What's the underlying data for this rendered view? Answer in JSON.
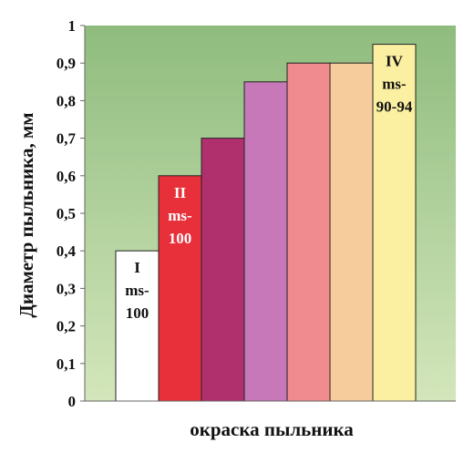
{
  "chart_data": {
    "type": "bar",
    "title": "",
    "xlabel": "окраска пыльника",
    "ylabel": "Диаметр пыльника, мм",
    "ylim": [
      0,
      1
    ],
    "yticks": [
      "0",
      "0,1",
      "0,2",
      "0,3",
      "0,4",
      "0,5",
      "0,6",
      "0,7",
      "0,8",
      "0,9",
      "1"
    ],
    "grid": false,
    "legend": "none",
    "plot_background": [
      "#d3e6bb",
      "#8fbc7e"
    ],
    "bars": [
      {
        "value": 0.4,
        "color": "#ffffff",
        "label": [
          "I",
          "ms-",
          "100"
        ],
        "label_color": "#111111"
      },
      {
        "value": 0.6,
        "color": "#e8303a",
        "label": [
          "II",
          "ms-",
          "100"
        ],
        "label_color": "#ffffff"
      },
      {
        "value": 0.7,
        "color": "#b0306e",
        "label": [],
        "label_color": "#ffffff"
      },
      {
        "value": 0.85,
        "color": "#c778b8",
        "label": [],
        "label_color": "#ffffff"
      },
      {
        "value": 0.9,
        "color": "#f08c90",
        "label": [],
        "label_color": "#ffffff"
      },
      {
        "value": 0.9,
        "color": "#f7cc9c",
        "label": [],
        "label_color": "#ffffff"
      },
      {
        "value": 0.95,
        "color": "#fbf0a2",
        "label": [
          "IV",
          "ms-",
          "90-94"
        ],
        "label_color": "#111111"
      }
    ]
  }
}
